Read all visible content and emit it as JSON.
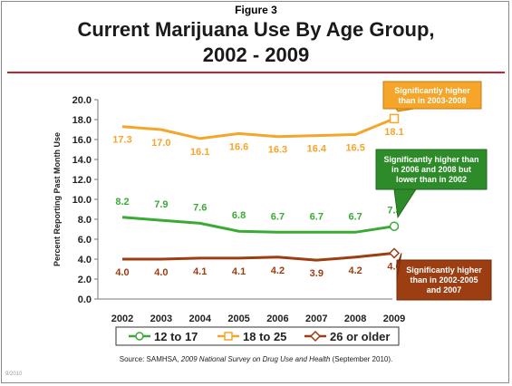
{
  "figure_label": "Figure 3",
  "title_line1": "Current Marijuana  Use By Age Group,",
  "title_line2": "2002 - 2009",
  "source": {
    "prefix": "Source:  SAMHSA, ",
    "italic": "2009 National Survey on Drug Use and Health",
    "suffix": " (September 2010)."
  },
  "corner_note": "9/2010",
  "colors": {
    "s12to17": "#3aaa35",
    "s18to25": "#f5a52a",
    "s26plus": "#9c3d12",
    "rule": "#c8202a"
  },
  "chart_data": {
    "type": "line",
    "ylabel": "Percent Reporting Past Month Use",
    "ylim": [
      0,
      20
    ],
    "yticks": [
      "0.0",
      "2.0",
      "4.0",
      "6.0",
      "8.0",
      "10.0",
      "12.0",
      "14.0",
      "16.0",
      "18.0",
      "20.0"
    ],
    "categories": [
      "2002",
      "2003",
      "2004",
      "2005",
      "2006",
      "2007",
      "2008",
      "2009"
    ],
    "grid": false,
    "legend_position": "bottom",
    "series": [
      {
        "name": "12 to 17",
        "values": [
          8.2,
          7.9,
          7.6,
          6.8,
          6.7,
          6.7,
          6.7,
          7.3
        ],
        "labels": [
          "8.2",
          "7.9",
          "7.6",
          "6.8",
          "6.7",
          "6.7",
          "6.7",
          "7.3"
        ]
      },
      {
        "name": "18 to 25",
        "values": [
          17.3,
          17.0,
          16.1,
          16.6,
          16.3,
          16.4,
          16.5,
          18.1
        ],
        "labels": [
          "17.3",
          "17.0",
          "16.1",
          "16.6",
          "16.3",
          "16.4",
          "16.5",
          "18.1"
        ]
      },
      {
        "name": "26 or older",
        "values": [
          4.0,
          4.0,
          4.1,
          4.1,
          4.2,
          3.9,
          4.2,
          4.6
        ],
        "labels": [
          "4.0",
          "4.0",
          "4.1",
          "4.1",
          "4.2",
          "3.9",
          "4.2",
          "4.6"
        ]
      }
    ],
    "annotations": [
      {
        "lines": [
          "Significantly higher",
          "than in 2003-2008"
        ]
      },
      {
        "lines": [
          "Significantly higher than",
          "in 2006 and 2008 but",
          "lower than in 2002"
        ]
      },
      {
        "lines": [
          "Significantly higher",
          "than in 2002-2005",
          "and 2007"
        ]
      }
    ]
  }
}
